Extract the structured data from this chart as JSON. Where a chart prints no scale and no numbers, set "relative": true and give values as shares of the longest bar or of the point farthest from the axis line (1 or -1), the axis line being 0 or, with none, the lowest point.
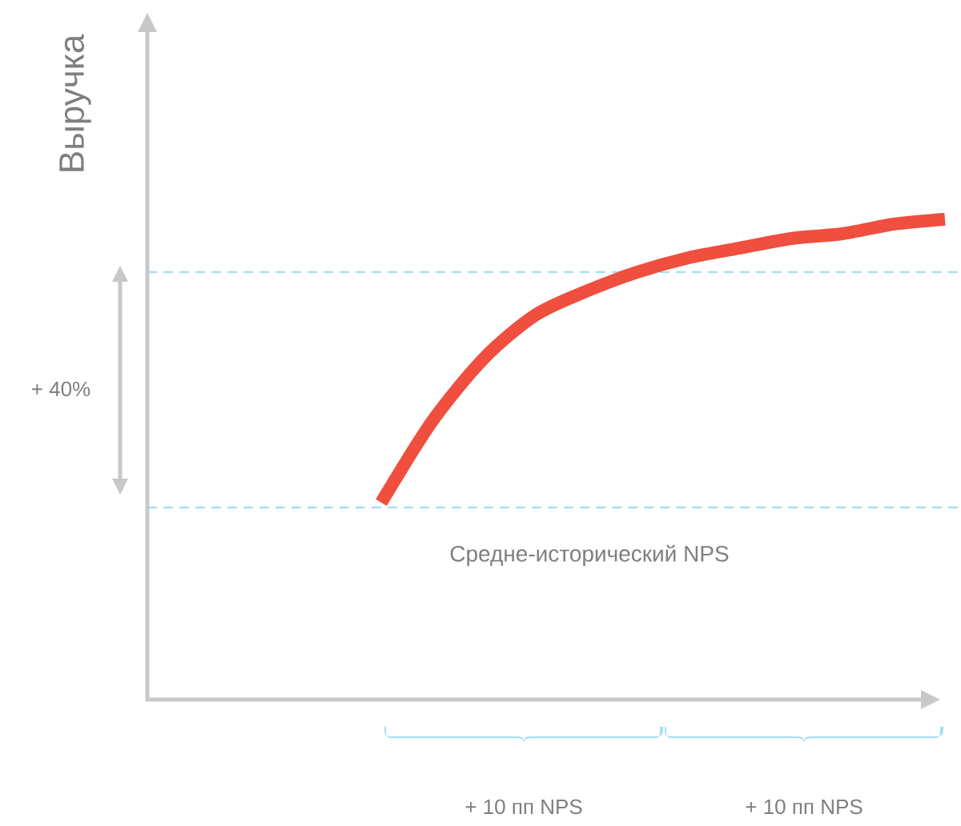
{
  "chart_data": {
    "type": "line",
    "relative": true,
    "categories": [
      null,
      null,
      null,
      null,
      null,
      null,
      null,
      null,
      null,
      null,
      null,
      null
    ],
    "series": [
      {
        "color": "#f04e3e",
        "values": [
          0.41,
          0.58,
          0.71,
          0.8,
          0.85,
          0.89,
          0.92,
          0.94,
          0.96,
          0.97,
          0.99,
          1
        ]
      }
    ],
    "ref_lines": [
      {
        "axis": "y",
        "value": 0.4,
        "label": "Средне-исторический  NPS",
        "color": "#a6def5",
        "line_style": "dashed"
      },
      {
        "axis": "y",
        "value": 0.89,
        "color": "#a6def5",
        "line_style": "dashed"
      }
    ],
    "annotations": [
      "Выручка",
      "+ 40%",
      "+ 10 пп NPS",
      "+ 10 пп NPS"
    ],
    "line_style": "solid"
  }
}
